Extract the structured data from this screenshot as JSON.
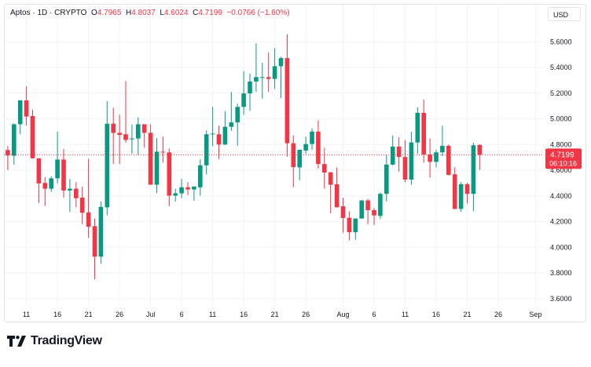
{
  "header": {
    "symbol": "Aptos",
    "interval": "1D",
    "exchange": "CRYPTO",
    "open_label": "O",
    "open": "4.7965",
    "high_label": "H",
    "high": "4.8037",
    "low_label": "L",
    "low": "4.6024",
    "close_label": "C",
    "close": "4.7199",
    "change": "−0.0766 (−1.60%)"
  },
  "currency": "USD",
  "last_price": {
    "value": "4.7199",
    "countdown": "06:10:16"
  },
  "brand": {
    "name": "TradingView",
    "logo_icon": "tradingview-logo-icon"
  },
  "colors": {
    "up": "#089981",
    "down": "#f23645",
    "grid": "#f0f3fa"
  },
  "chart_data": {
    "type": "candlestick",
    "title": "Aptos · 1D · CRYPTO",
    "ylim": [
      3.6,
      5.7
    ],
    "grid": true,
    "y_ticks": [
      "5.6000",
      "5.4000",
      "5.2000",
      "5.0000",
      "4.8000",
      "4.6000",
      "4.4000",
      "4.2000",
      "4.0000",
      "3.8000",
      "3.6000"
    ],
    "x_ticks": [
      {
        "label": "11",
        "date": "Jun 11"
      },
      {
        "label": "16",
        "date": "Jun 16"
      },
      {
        "label": "21",
        "date": "Jun 21"
      },
      {
        "label": "26",
        "date": "Jun 26"
      },
      {
        "label": "Jul",
        "date": "Jul 1"
      },
      {
        "label": "6",
        "date": "Jul 6"
      },
      {
        "label": "11",
        "date": "Jul 11"
      },
      {
        "label": "16",
        "date": "Jul 16"
      },
      {
        "label": "21",
        "date": "Jul 21"
      },
      {
        "label": "26",
        "date": "Jul 26"
      },
      {
        "label": "Aug",
        "date": "Aug 1"
      },
      {
        "label": "6",
        "date": "Aug 6"
      },
      {
        "label": "11",
        "date": "Aug 11"
      },
      {
        "label": "16",
        "date": "Aug 16"
      },
      {
        "label": "21",
        "date": "Aug 21"
      },
      {
        "label": "26",
        "date": "Aug 26"
      },
      {
        "label": "Sep",
        "date": "Sep 1"
      }
    ],
    "columns": [
      "date",
      "open",
      "high",
      "low",
      "close"
    ],
    "candles": [
      [
        "Jun 8",
        4.757,
        4.788,
        4.6,
        4.715
      ],
      [
        "Jun 9",
        4.713,
        4.964,
        4.644,
        4.958
      ],
      [
        "Jun 10",
        4.958,
        5.145,
        4.88,
        5.144
      ],
      [
        "Jun 11",
        5.144,
        5.255,
        4.947,
        5.018
      ],
      [
        "Jun 12",
        5.022,
        5.073,
        4.69,
        4.693
      ],
      [
        "Jun 13",
        4.693,
        4.693,
        4.345,
        4.497
      ],
      [
        "Jun 14",
        4.501,
        4.547,
        4.321,
        4.456
      ],
      [
        "Jun 15",
        4.456,
        4.553,
        4.432,
        4.537
      ],
      [
        "Jun 16",
        4.537,
        4.901,
        4.497,
        4.683
      ],
      [
        "Jun 17",
        4.683,
        4.765,
        4.386,
        4.442
      ],
      [
        "Jun 18",
        4.442,
        4.531,
        4.275,
        4.456
      ],
      [
        "Jun 19",
        4.456,
        4.507,
        4.311,
        4.382
      ],
      [
        "Jun 20",
        4.386,
        4.473,
        4.18,
        4.269
      ],
      [
        "Jun 21",
        4.271,
        4.689,
        4.073,
        4.16
      ],
      [
        "Jun 22",
        4.164,
        4.224,
        3.75,
        3.927
      ],
      [
        "Jun 23",
        3.927,
        4.356,
        3.871,
        4.315
      ],
      [
        "Jun 24",
        4.311,
        5.138,
        4.25,
        4.962
      ],
      [
        "Jun 25",
        4.962,
        5.087,
        4.648,
        4.891
      ],
      [
        "Jun 26",
        4.891,
        5.032,
        4.648,
        4.875
      ],
      [
        "Jun 27",
        4.88,
        5.295,
        4.814,
        4.836
      ],
      [
        "Jun 28",
        4.84,
        4.956,
        4.729,
        4.847
      ],
      [
        "Jun 29",
        4.847,
        5.012,
        4.719,
        4.958
      ],
      [
        "Jun 30",
        4.958,
        4.958,
        4.774,
        4.891
      ],
      [
        "Jul 1",
        4.891,
        4.958,
        4.487,
        4.487
      ],
      [
        "Jul 2",
        4.487,
        4.85,
        4.422,
        4.744
      ],
      [
        "Jul 3",
        4.744,
        4.861,
        4.659,
        4.739
      ],
      [
        "Jul 4",
        4.739,
        4.77,
        4.321,
        4.402
      ],
      [
        "Jul 5",
        4.402,
        4.456,
        4.356,
        4.42
      ],
      [
        "Jul 6",
        4.42,
        4.533,
        4.382,
        4.467
      ],
      [
        "Jul 7",
        4.467,
        4.507,
        4.406,
        4.45
      ],
      [
        "Jul 8",
        4.45,
        4.473,
        4.362,
        4.473
      ],
      [
        "Jul 9",
        4.467,
        4.685,
        4.402,
        4.638
      ],
      [
        "Jul 10",
        4.638,
        4.911,
        4.568,
        4.88
      ],
      [
        "Jul 11",
        4.88,
        5.093,
        4.786,
        4.885
      ],
      [
        "Jul 12",
        4.88,
        4.947,
        4.685,
        4.8
      ],
      [
        "Jul 13",
        4.8,
        5.059,
        4.796,
        4.938
      ],
      [
        "Jul 14",
        4.938,
        5.21,
        4.905,
        4.972
      ],
      [
        "Jul 15",
        4.972,
        5.117,
        4.79,
        5.093
      ],
      [
        "Jul 16",
        5.093,
        5.372,
        5.032,
        5.198
      ],
      [
        "Jul 17",
        5.198,
        5.352,
        5.062,
        5.291
      ],
      [
        "Jul 18",
        5.291,
        5.588,
        5.21,
        5.325
      ],
      [
        "Jul 19",
        5.321,
        5.436,
        5.158,
        5.325
      ],
      [
        "Jul 20",
        5.325,
        5.517,
        5.21,
        5.311
      ],
      [
        "Jul 21",
        5.311,
        5.552,
        5.235,
        5.41
      ],
      [
        "Jul 22",
        5.41,
        5.483,
        5.164,
        5.473
      ],
      [
        "Jul 23",
        5.473,
        5.659,
        4.705,
        4.81
      ],
      [
        "Jul 24",
        4.81,
        4.871,
        4.467,
        4.624
      ],
      [
        "Jul 25",
        4.622,
        4.759,
        4.521,
        4.759
      ],
      [
        "Jul 26",
        4.753,
        4.861,
        4.729,
        4.804
      ],
      [
        "Jul 27",
        4.804,
        4.925,
        4.759,
        4.901
      ],
      [
        "Jul 28",
        4.901,
        4.988,
        4.612,
        4.648
      ],
      [
        "Jul 29",
        4.648,
        4.774,
        4.456,
        4.582
      ],
      [
        "Jul 30",
        4.584,
        4.584,
        4.265,
        4.487
      ],
      [
        "Jul 31",
        4.491,
        4.622,
        4.311,
        4.311
      ],
      [
        "Aug 1",
        4.319,
        4.386,
        4.113,
        4.228
      ],
      [
        "Aug 2",
        4.23,
        4.281,
        4.053,
        4.117
      ],
      [
        "Aug 3",
        4.117,
        4.224,
        4.059,
        4.224
      ],
      [
        "Aug 4",
        4.224,
        4.365,
        4.224,
        4.365
      ],
      [
        "Aug 5",
        4.365,
        4.376,
        4.18,
        4.289
      ],
      [
        "Aug 6",
        4.289,
        4.305,
        4.174,
        4.248
      ],
      [
        "Aug 7",
        4.244,
        4.426,
        4.22,
        4.416
      ],
      [
        "Aug 8",
        4.416,
        4.719,
        4.356,
        4.644
      ],
      [
        "Aug 9",
        4.644,
        4.871,
        4.638,
        4.784
      ],
      [
        "Aug 10",
        4.784,
        4.856,
        4.588,
        4.703
      ],
      [
        "Aug 11",
        4.703,
        4.834,
        4.507,
        4.527
      ],
      [
        "Aug 12",
        4.527,
        4.901,
        4.487,
        4.816
      ],
      [
        "Aug 13",
        4.816,
        5.089,
        4.729,
        5.047
      ],
      [
        "Aug 14",
        5.047,
        5.15,
        4.659,
        4.723
      ],
      [
        "Aug 15",
        4.723,
        4.847,
        4.541,
        4.665
      ],
      [
        "Aug 16",
        4.665,
        4.759,
        4.622,
        4.739
      ],
      [
        "Aug 17",
        4.739,
        4.947,
        4.709,
        4.79
      ],
      [
        "Aug 18",
        4.79,
        4.8,
        4.558,
        4.564
      ],
      [
        "Aug 19",
        4.568,
        4.624,
        4.295,
        4.299
      ],
      [
        "Aug 20",
        4.299,
        4.507,
        4.275,
        4.491
      ],
      [
        "Aug 21",
        4.491,
        4.501,
        4.341,
        4.416
      ],
      [
        "Aug 22",
        4.416,
        4.814,
        4.281,
        4.794
      ],
      [
        "Aug 23",
        4.7965,
        4.8037,
        4.6024,
        4.7199
      ]
    ]
  }
}
